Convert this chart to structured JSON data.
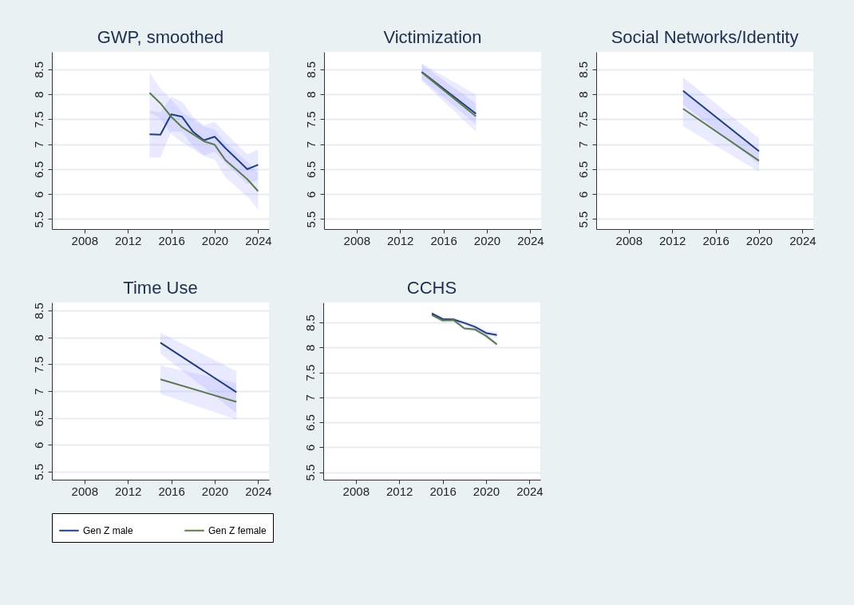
{
  "chart_data": [
    {
      "type": "line",
      "title": "GWP, smoothed",
      "x": [
        2014,
        2015,
        2016,
        2017,
        2018,
        2019,
        2020,
        2021,
        2022,
        2023,
        2024
      ],
      "xlim": [
        2005,
        2025
      ],
      "xticks": [
        2008,
        2012,
        2016,
        2020,
        2024
      ],
      "ylim": [
        5.3,
        8.85
      ],
      "yticks": [
        5.5,
        6,
        6.5,
        7,
        7.5,
        8,
        8.5
      ],
      "grid": "y",
      "legend": "bottom",
      "series": [
        {
          "name": "Gen Z male",
          "color": "#1f3f7a",
          "values": [
            7.2,
            7.19,
            7.6,
            7.55,
            7.25,
            7.08,
            7.15,
            6.92,
            6.71,
            6.5,
            6.59
          ],
          "lower": [
            6.73,
            6.74,
            7.25,
            7.25,
            6.95,
            6.78,
            6.85,
            6.62,
            6.41,
            6.2,
            6.29
          ],
          "upper": [
            7.67,
            7.64,
            7.95,
            7.85,
            7.55,
            7.38,
            7.45,
            7.22,
            7.01,
            6.8,
            6.89
          ]
        },
        {
          "name": "Gen Z female",
          "color": "#5a7a4a",
          "values": [
            8.03,
            7.82,
            7.55,
            7.34,
            7.2,
            7.06,
            6.99,
            6.68,
            6.49,
            6.3,
            6.06
          ],
          "lower": [
            7.63,
            7.52,
            7.2,
            7.04,
            6.9,
            6.76,
            6.69,
            6.33,
            6.14,
            5.95,
            5.7
          ],
          "upper": [
            8.43,
            8.12,
            7.9,
            7.64,
            7.5,
            7.36,
            7.29,
            7.03,
            6.84,
            6.65,
            6.42
          ]
        }
      ]
    },
    {
      "type": "line",
      "title": "Victimization",
      "x": [
        2014,
        2019
      ],
      "xlim": [
        2005,
        2025
      ],
      "xticks": [
        2008,
        2012,
        2016,
        2020,
        2024
      ],
      "ylim": [
        5.3,
        8.85
      ],
      "yticks": [
        5.5,
        6,
        6.5,
        7,
        7.5,
        8,
        8.5
      ],
      "grid": "y",
      "series": [
        {
          "name": "Gen Z male",
          "color": "#1f3f7a",
          "values": [
            8.45,
            7.61
          ],
          "lower": [
            8.3,
            7.4
          ],
          "upper": [
            8.6,
            7.82
          ]
        },
        {
          "name": "Gen Z female",
          "color": "#5a7a4a",
          "values": [
            8.44,
            7.56
          ],
          "lower": [
            8.27,
            7.25
          ],
          "upper": [
            8.62,
            7.99
          ]
        }
      ]
    },
    {
      "type": "line",
      "title": "Social Networks/Identity",
      "x": [
        2013,
        2020
      ],
      "xlim": [
        2005,
        2025
      ],
      "xticks": [
        2008,
        2012,
        2016,
        2020,
        2024
      ],
      "ylim": [
        5.3,
        8.85
      ],
      "yticks": [
        5.5,
        6,
        6.5,
        7,
        7.5,
        8,
        8.5
      ],
      "grid": "y",
      "series": [
        {
          "name": "Gen Z male",
          "color": "#1f3f7a",
          "values": [
            8.07,
            6.86
          ],
          "lower": [
            7.8,
            6.6
          ],
          "upper": [
            8.34,
            7.12
          ]
        },
        {
          "name": "Gen Z female",
          "color": "#5a7a4a",
          "values": [
            7.71,
            6.67
          ],
          "lower": [
            7.36,
            6.45
          ],
          "upper": [
            8.06,
            6.9
          ]
        }
      ]
    },
    {
      "type": "line",
      "title": "Time Use",
      "x": [
        2015,
        2022
      ],
      "xlim": [
        2005,
        2025
      ],
      "xticks": [
        2008,
        2012,
        2016,
        2020,
        2024
      ],
      "ylim": [
        5.35,
        8.65
      ],
      "yticks": [
        5.5,
        6,
        6.5,
        7,
        7.5,
        8,
        8.5
      ],
      "grid": "y",
      "series": [
        {
          "name": "Gen Z male",
          "color": "#1f3f7a",
          "values": [
            7.9,
            6.98
          ],
          "lower": [
            7.7,
            6.59
          ],
          "upper": [
            8.09,
            7.37
          ]
        },
        {
          "name": "Gen Z female",
          "color": "#5a7a4a",
          "values": [
            7.22,
            6.8
          ],
          "lower": [
            6.95,
            6.47
          ],
          "upper": [
            7.48,
            7.15
          ]
        }
      ]
    },
    {
      "type": "line",
      "title": "CCHS",
      "x": [
        2015,
        2016,
        2017,
        2018,
        2019,
        2020,
        2021
      ],
      "xlim": [
        2005,
        2025
      ],
      "xticks": [
        2008,
        2012,
        2016,
        2020,
        2024
      ],
      "ylim": [
        5.35,
        8.9
      ],
      "yticks": [
        5.5,
        6,
        6.5,
        7,
        7.5,
        8,
        8.5
      ],
      "grid": "y",
      "series": [
        {
          "name": "Gen Z male",
          "color": "#1f3f7a",
          "values": [
            8.68,
            8.57,
            8.56,
            8.49,
            8.41,
            8.29,
            8.25
          ],
          "lower": [
            8.64,
            8.53,
            8.52,
            8.45,
            8.37,
            8.24,
            8.19
          ],
          "upper": [
            8.72,
            8.61,
            8.6,
            8.53,
            8.45,
            8.34,
            8.31
          ]
        },
        {
          "name": "Gen Z female",
          "color": "#5a7a4a",
          "values": [
            8.65,
            8.54,
            8.55,
            8.38,
            8.36,
            8.23,
            8.06
          ],
          "lower": [
            8.61,
            8.5,
            8.51,
            8.34,
            8.32,
            8.18,
            8.01
          ],
          "upper": [
            8.69,
            8.58,
            8.59,
            8.42,
            8.4,
            8.28,
            8.11
          ]
        }
      ]
    }
  ]
}
